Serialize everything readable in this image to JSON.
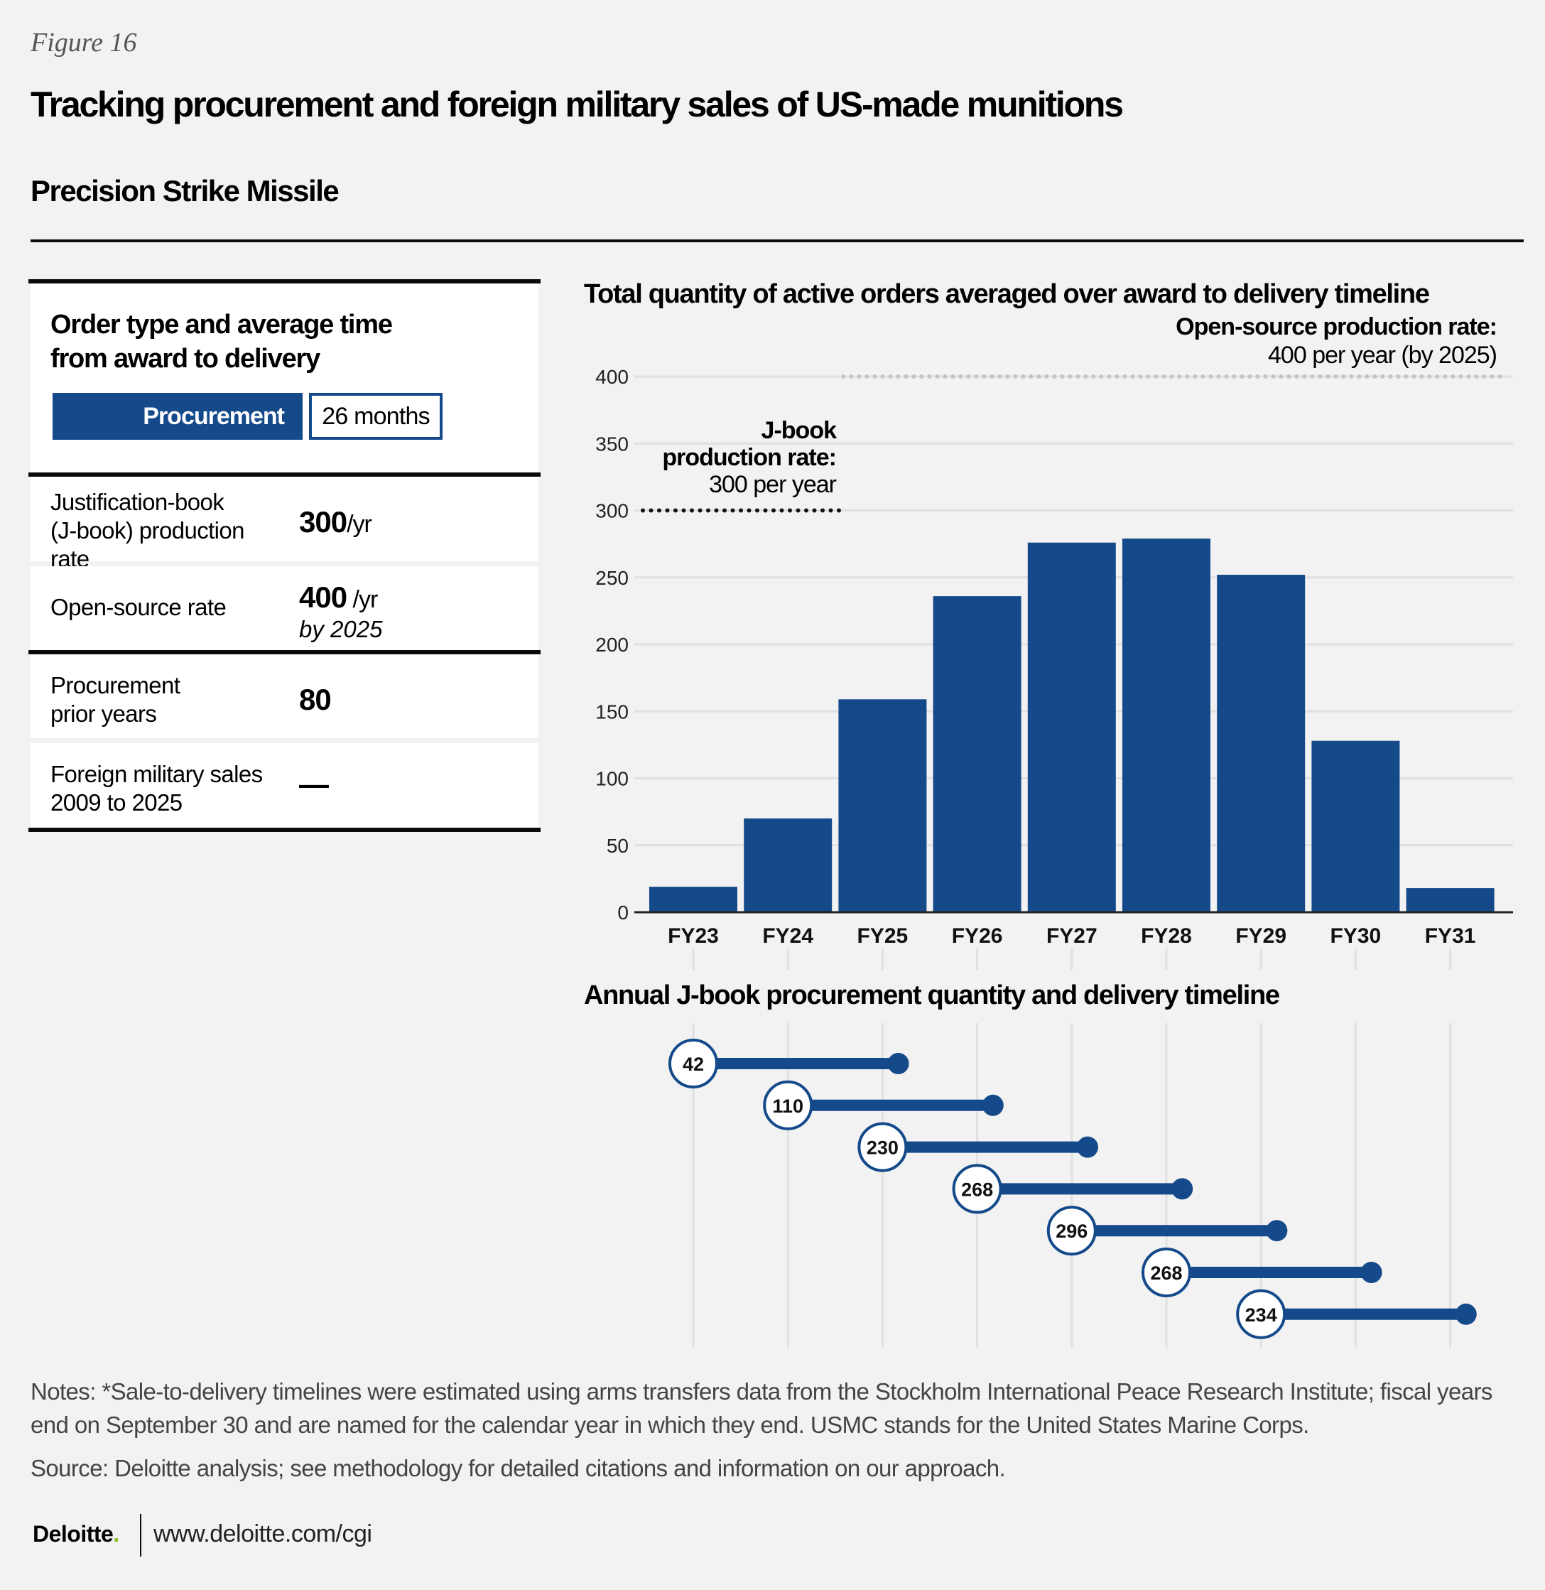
{
  "figure_label": "Figure 16",
  "title": "Tracking procurement and foreign military sales of US-made munitions",
  "subtitle": "Precision Strike Missile",
  "colors": {
    "accent": "#154a8a",
    "logo_dot": "#86bc25",
    "grid": "#e0e0e0",
    "open_source_line": "#c4c4c4"
  },
  "panel": {
    "order_title_line1": "Order type and average time",
    "order_title_line2": "from award to delivery",
    "order_type": "Procurement",
    "order_time": "26 months",
    "rows": [
      {
        "label_lines": [
          "Justification-book",
          "(J-book) production",
          "rate"
        ],
        "value": "300",
        "unit": "/yr"
      },
      {
        "label_lines": [
          "Open-source rate"
        ],
        "value": "400",
        "unit": " /yr",
        "sub": "by 2025"
      },
      {
        "label_lines": [
          "Procurement",
          "prior years"
        ],
        "value": "80"
      },
      {
        "label_lines": [
          "Foreign military sales",
          "2009 to 2025"
        ],
        "value": "—"
      }
    ]
  },
  "chart_data": [
    {
      "type": "bar",
      "title": "Total quantity of active orders averaged over award to delivery timeline",
      "categories": [
        "FY23",
        "FY24",
        "FY25",
        "FY26",
        "FY27",
        "FY28",
        "FY29",
        "FY30",
        "FY31"
      ],
      "values": [
        19,
        70,
        159,
        236,
        276,
        279,
        252,
        128,
        18
      ],
      "xlabel": "",
      "ylabel": "",
      "ylim": [
        0,
        400
      ],
      "yticks": [
        0,
        50,
        100,
        150,
        200,
        250,
        300,
        350,
        400
      ],
      "grid": true,
      "reference_lines": [
        {
          "name": "J-book production rate",
          "value": 300,
          "from_category": "FY23",
          "to_category": "FY25",
          "style": "dotted-black",
          "label_bold_lines": [
            "J-book",
            "production rate:"
          ],
          "label_text": "300 per year"
        },
        {
          "name": "Open-source production rate",
          "value": 400,
          "from_category": "FY25",
          "to_category": "FY31",
          "style": "dotted-gray",
          "label_bold_lines": [
            "Open-source production rate:"
          ],
          "label_text": "400 per year (by 2025)"
        }
      ]
    },
    {
      "type": "timeline",
      "title": "Annual J-book procurement quantity and delivery timeline",
      "duration_months": 26,
      "items": [
        {
          "start": "FY23",
          "quantity": 42
        },
        {
          "start": "FY24",
          "quantity": 110
        },
        {
          "start": "FY25",
          "quantity": 230
        },
        {
          "start": "FY26",
          "quantity": 268
        },
        {
          "start": "FY27",
          "quantity": 296
        },
        {
          "start": "FY28",
          "quantity": 268
        },
        {
          "start": "FY29",
          "quantity": 234
        }
      ]
    }
  ],
  "notes": "Notes: *Sale-to-delivery timelines were estimated using arms transfers data from the Stockholm International Peace Research Institute; fiscal years end on September 30 and are named for the calendar year in which they end. USMC stands for the United States Marine Corps.",
  "source": "Source: Deloitte analysis; see methodology for detailed citations and information on our approach.",
  "footer": {
    "logo_text": "Deloitte",
    "logo_dot": ".",
    "url": "www.deloitte.com/cgi"
  }
}
